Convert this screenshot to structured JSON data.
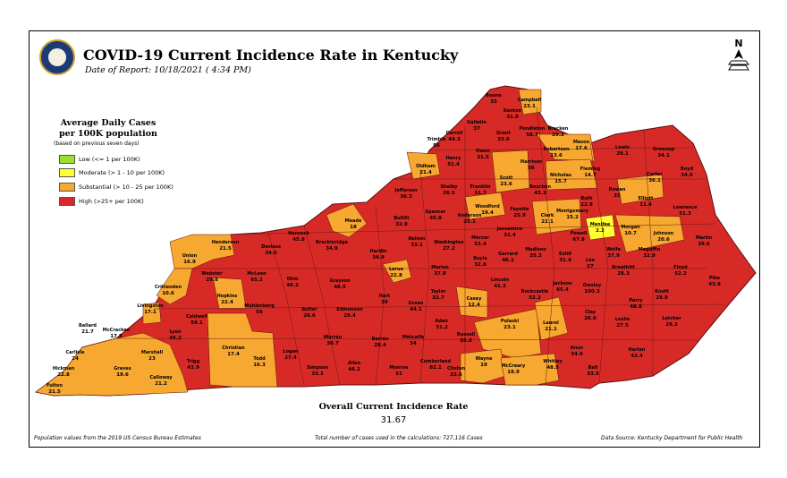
{
  "header": {
    "title": "COVID-19 Current Incidence Rate in Kentucky",
    "report_date": "Date of Report: 10/18/2021 ( 4:34 PM)"
  },
  "north_arrow": {
    "label": "N",
    "icon": "north-arrow-icon"
  },
  "legend": {
    "title_line1": "Average Daily Cases",
    "title_line2": "per 100K population",
    "note": "(based on previous seven days)",
    "items": [
      {
        "label": "Low (<= 1 per 100K)",
        "color": "#99e033"
      },
      {
        "label": "Moderate (> 1 - 10 per 100K)",
        "color": "#ffff33"
      },
      {
        "label": "Substantial (> 10 - 25 per 100K)",
        "color": "#f7a830"
      },
      {
        "label": "High (>25+ per 100K)",
        "color": "#d72a26"
      }
    ]
  },
  "overall": {
    "label": "Overall Current Incidence Rate",
    "value": "31.67"
  },
  "footer": {
    "population_note": "Population values from the 2019 US Census Bureau Estimates",
    "cases_note": "Total number of cases used in the calculations: 727,116 Cases",
    "source_note": "Data Source: Kentucky Department for Public Health"
  },
  "counties": [
    {
      "name": "Boone",
      "rate": "35"
    },
    {
      "name": "Campbell",
      "rate": "23.1"
    },
    {
      "name": "Kenton",
      "rate": "31.8"
    },
    {
      "name": "Gallatin",
      "rate": "37"
    },
    {
      "name": "Carroll",
      "rate": "44.3"
    },
    {
      "name": "Grant",
      "rate": "33.6"
    },
    {
      "name": "Pendleton",
      "rate": "58.7"
    },
    {
      "name": "Bracken",
      "rate": "29.2"
    },
    {
      "name": "Trimble",
      "rate": "56"
    },
    {
      "name": "Owen",
      "rate": "31.5"
    },
    {
      "name": "Robertson",
      "rate": "13.6"
    },
    {
      "name": "Mason",
      "rate": "17.6"
    },
    {
      "name": "Lewis",
      "rate": "29.1"
    },
    {
      "name": "Greenup",
      "rate": "34.1"
    },
    {
      "name": "Henry",
      "rate": "51.4"
    },
    {
      "name": "Harrison",
      "rate": "56"
    },
    {
      "name": "Oldham",
      "rate": "21.4"
    },
    {
      "name": "Fleming",
      "rate": "14.7"
    },
    {
      "name": "Boyd",
      "rate": "34.6"
    },
    {
      "name": "Carter",
      "rate": "36.1"
    },
    {
      "name": "Nicholas",
      "rate": "15.7"
    },
    {
      "name": "Scott",
      "rate": "23.6"
    },
    {
      "name": "Shelby",
      "rate": "26.5"
    },
    {
      "name": "Franklin",
      "rate": "31.7"
    },
    {
      "name": "Bourbon",
      "rate": "43.3"
    },
    {
      "name": "Jefferson",
      "rate": "30.3"
    },
    {
      "name": "Rowan",
      "rate": "35"
    },
    {
      "name": "Elliott",
      "rate": "11.4"
    },
    {
      "name": "Bath",
      "rate": "22.9"
    },
    {
      "name": "Woodford",
      "rate": "19.4"
    },
    {
      "name": "Fayette",
      "rate": "25.9"
    },
    {
      "name": "Lawrence",
      "rate": "51.3"
    },
    {
      "name": "Montgomery",
      "rate": "15.2"
    },
    {
      "name": "Spencer",
      "rate": "45.8"
    },
    {
      "name": "Anderson",
      "rate": "25.1"
    },
    {
      "name": "Clark",
      "rate": "22.1"
    },
    {
      "name": "Bullitt",
      "rate": "32.9"
    },
    {
      "name": "Meade",
      "rate": "18"
    },
    {
      "name": "Menifee",
      "rate": "2.2"
    },
    {
      "name": "Morgan",
      "rate": "10.7"
    },
    {
      "name": "Jessamine",
      "rate": "31.4"
    },
    {
      "name": "Powell",
      "rate": "67.8"
    },
    {
      "name": "Johnson",
      "rate": "20.6"
    },
    {
      "name": "Mercer",
      "rate": "53.4"
    },
    {
      "name": "Martin",
      "rate": "39.6"
    },
    {
      "name": "Nelson",
      "rate": "33.1"
    },
    {
      "name": "Washington",
      "rate": "27.2"
    },
    {
      "name": "Hancock",
      "rate": "45.8"
    },
    {
      "name": "Breckinridge",
      "rate": "34.9"
    },
    {
      "name": "Magoffin",
      "rate": "32.9"
    },
    {
      "name": "Wolfe",
      "rate": "37.9"
    },
    {
      "name": "Madison",
      "rate": "35.3"
    },
    {
      "name": "Henderson",
      "rate": "21.5"
    },
    {
      "name": "Daviess",
      "rate": "34.5"
    },
    {
      "name": "Estill",
      "rate": "31.4"
    },
    {
      "name": "Garrard",
      "rate": "46.1"
    },
    {
      "name": "Hardin",
      "rate": "34.9"
    },
    {
      "name": "Boyle",
      "rate": "32.8"
    },
    {
      "name": "Lee",
      "rate": "27"
    },
    {
      "name": "Breathitt",
      "rate": "28.3"
    },
    {
      "name": "Floyd",
      "rate": "52.2"
    },
    {
      "name": "Union",
      "rate": "16.9"
    },
    {
      "name": "Marion",
      "rate": "37.8"
    },
    {
      "name": "Larue",
      "rate": "22.8"
    },
    {
      "name": "Webster",
      "rate": "29.8"
    },
    {
      "name": "Lincoln",
      "rate": "41.3"
    },
    {
      "name": "McLean",
      "rate": "65.2"
    },
    {
      "name": "Rockcastle",
      "rate": "52.2"
    },
    {
      "name": "Jackson",
      "rate": "65.4"
    },
    {
      "name": "Owsley",
      "rate": "100.3"
    },
    {
      "name": "Pike",
      "rate": "43.9"
    },
    {
      "name": "Ohio",
      "rate": "48.2"
    },
    {
      "name": "Crittenden",
      "rate": "10.6"
    },
    {
      "name": "Grayson",
      "rate": "46.5"
    },
    {
      "name": "Taylor",
      "rate": "32.7"
    },
    {
      "name": "Knott",
      "rate": "29.9"
    },
    {
      "name": "Hopkins",
      "rate": "22.4"
    },
    {
      "name": "Casey",
      "rate": "12.4"
    },
    {
      "name": "Hart",
      "rate": "39"
    },
    {
      "name": "Muhlenberg",
      "rate": "56"
    },
    {
      "name": "Green",
      "rate": "44.1"
    },
    {
      "name": "Perry",
      "rate": "48.8"
    },
    {
      "name": "Livingston",
      "rate": "17.1"
    },
    {
      "name": "Caldwell",
      "rate": "59.1"
    },
    {
      "name": "Butler",
      "rate": "26.6"
    },
    {
      "name": "Edmonson",
      "rate": "29.4"
    },
    {
      "name": "Clay",
      "rate": "26.6"
    },
    {
      "name": "Leslie",
      "rate": "27.5"
    },
    {
      "name": "Letcher",
      "rate": "29.2"
    },
    {
      "name": "Adair",
      "rate": "31.2"
    },
    {
      "name": "Pulaski",
      "rate": "23.1"
    },
    {
      "name": "Laurel",
      "rate": "21.1"
    },
    {
      "name": "Ballard",
      "rate": "21.7"
    },
    {
      "name": "McCracken",
      "rate": "17.5"
    },
    {
      "name": "Lyon",
      "rate": "45.2"
    },
    {
      "name": "Christian",
      "rate": "17.4"
    },
    {
      "name": "Warren",
      "rate": "30.7"
    },
    {
      "name": "Russell",
      "rate": "55.8"
    },
    {
      "name": "Metcalfe",
      "rate": "34"
    },
    {
      "name": "Barren",
      "rate": "28.4"
    },
    {
      "name": "Knox",
      "rate": "34.9"
    },
    {
      "name": "Harlan",
      "rate": "43.4"
    },
    {
      "name": "Carlisle",
      "rate": "24"
    },
    {
      "name": "Marshall",
      "rate": "23"
    },
    {
      "name": "Logan",
      "rate": "27.4"
    },
    {
      "name": "Todd",
      "rate": "16.3"
    },
    {
      "name": "Trigg",
      "rate": "43.9"
    },
    {
      "name": "Allen",
      "rate": "46.2"
    },
    {
      "name": "Wayne",
      "rate": "19"
    },
    {
      "name": "Cumberland",
      "rate": "82.1"
    },
    {
      "name": "Whitley",
      "rate": "48.5"
    },
    {
      "name": "Bell",
      "rate": "33.5"
    },
    {
      "name": "Hickman",
      "rate": "22.8"
    },
    {
      "name": "Graves",
      "rate": "19.6"
    },
    {
      "name": "Simpson",
      "rate": "33.1"
    },
    {
      "name": "Monroe",
      "rate": "51"
    },
    {
      "name": "Clinton",
      "rate": "33.6"
    },
    {
      "name": "McCreary",
      "rate": "19.9"
    },
    {
      "name": "Calloway",
      "rate": "21.2"
    },
    {
      "name": "Fulton",
      "rate": "21.5"
    }
  ]
}
